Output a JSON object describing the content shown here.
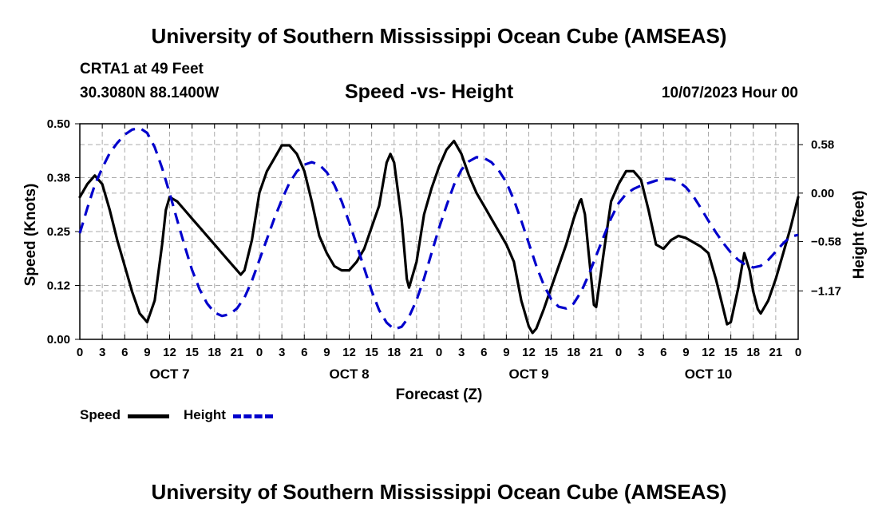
{
  "header": {
    "title": "University of Southern Mississippi Ocean Cube (AMSEAS)",
    "station": "CRTA1 at 49 Feet",
    "coords": "30.3080N  88.1400W",
    "date": "10/07/2023 Hour 00"
  },
  "footer": {
    "title": "University of Southern Mississippi Ocean Cube (AMSEAS)"
  },
  "legend": {
    "speed_label": "Speed",
    "height_label": "Height"
  },
  "colors": {
    "speed": "#000000",
    "height": "#0000cc",
    "grid": "#aaaaaa"
  },
  "chart_data": {
    "type": "line",
    "title": "Speed -vs- Height",
    "xlabel": "Forecast (Z)",
    "ylabel": "Speed (Knots)",
    "y2label": "Height (feet)",
    "x_range_hours": [
      0,
      96
    ],
    "ylim": [
      0,
      0.5
    ],
    "y2lim": [
      -1.75,
      0.83
    ],
    "y_ticks": [
      "0.00",
      "0.12",
      "0.25",
      "0.38",
      "0.50"
    ],
    "y_tick_values": [
      0,
      0.125,
      0.25,
      0.375,
      0.5
    ],
    "y2_ticks": [
      "0.58",
      "0.00",
      "−0.58",
      "−1.17"
    ],
    "y2_tick_values": [
      0.58,
      0,
      -0.58,
      -1.17
    ],
    "x_tick_labels": [
      "0",
      "3",
      "6",
      "9",
      "12",
      "15",
      "18",
      "21",
      "0",
      "3",
      "6",
      "9",
      "12",
      "15",
      "18",
      "21",
      "0",
      "3",
      "6",
      "9",
      "12",
      "15",
      "18",
      "21",
      "0",
      "3",
      "6",
      "9",
      "12",
      "15",
      "18",
      "21",
      "0"
    ],
    "day_labels": [
      {
        "label": "OCT 7",
        "hour": 12
      },
      {
        "label": "OCT 8",
        "hour": 36
      },
      {
        "label": "OCT 9",
        "hour": 60
      },
      {
        "label": "OCT 10",
        "hour": 84
      }
    ],
    "series": [
      {
        "name": "Speed",
        "axis": "left",
        "style": "solid",
        "points": [
          [
            0,
            0.33
          ],
          [
            1,
            0.36
          ],
          [
            2,
            0.38
          ],
          [
            3,
            0.36
          ],
          [
            4,
            0.3
          ],
          [
            5,
            0.23
          ],
          [
            6,
            0.17
          ],
          [
            7,
            0.11
          ],
          [
            8,
            0.06
          ],
          [
            9,
            0.04
          ],
          [
            10,
            0.09
          ],
          [
            11,
            0.22
          ],
          [
            11.5,
            0.3
          ],
          [
            12,
            0.33
          ],
          [
            13,
            0.32
          ],
          [
            14,
            0.3
          ],
          [
            15,
            0.28
          ],
          [
            16,
            0.26
          ],
          [
            17,
            0.24
          ],
          [
            18,
            0.22
          ],
          [
            19,
            0.2
          ],
          [
            20,
            0.18
          ],
          [
            21,
            0.16
          ],
          [
            21.5,
            0.15
          ],
          [
            22,
            0.16
          ],
          [
            23,
            0.23
          ],
          [
            24,
            0.34
          ],
          [
            25,
            0.39
          ],
          [
            26,
            0.42
          ],
          [
            27,
            0.45
          ],
          [
            28,
            0.45
          ],
          [
            29,
            0.43
          ],
          [
            30,
            0.39
          ],
          [
            31,
            0.32
          ],
          [
            32,
            0.24
          ],
          [
            33,
            0.2
          ],
          [
            34,
            0.17
          ],
          [
            35,
            0.16
          ],
          [
            36,
            0.16
          ],
          [
            37,
            0.18
          ],
          [
            38,
            0.21
          ],
          [
            39,
            0.26
          ],
          [
            40,
            0.31
          ],
          [
            40.5,
            0.36
          ],
          [
            41,
            0.41
          ],
          [
            41.5,
            0.43
          ],
          [
            42,
            0.41
          ],
          [
            43,
            0.28
          ],
          [
            43.7,
            0.14
          ],
          [
            44,
            0.12
          ],
          [
            45,
            0.18
          ],
          [
            46,
            0.29
          ],
          [
            47,
            0.35
          ],
          [
            48,
            0.4
          ],
          [
            49,
            0.44
          ],
          [
            50,
            0.46
          ],
          [
            51,
            0.43
          ],
          [
            52,
            0.38
          ],
          [
            53,
            0.34
          ],
          [
            54,
            0.31
          ],
          [
            55,
            0.28
          ],
          [
            56,
            0.25
          ],
          [
            57,
            0.22
          ],
          [
            58,
            0.18
          ],
          [
            59,
            0.09
          ],
          [
            60,
            0.03
          ],
          [
            60.5,
            0.015
          ],
          [
            61,
            0.025
          ],
          [
            62,
            0.07
          ],
          [
            63,
            0.12
          ],
          [
            64,
            0.17
          ],
          [
            65,
            0.22
          ],
          [
            66,
            0.28
          ],
          [
            66.8,
            0.32
          ],
          [
            67,
            0.325
          ],
          [
            67.5,
            0.29
          ],
          [
            68,
            0.2
          ],
          [
            68.7,
            0.08
          ],
          [
            69,
            0.075
          ],
          [
            70,
            0.2
          ],
          [
            71,
            0.32
          ],
          [
            72,
            0.36
          ],
          [
            73,
            0.39
          ],
          [
            74,
            0.39
          ],
          [
            75,
            0.37
          ],
          [
            76,
            0.3
          ],
          [
            77,
            0.22
          ],
          [
            78,
            0.21
          ],
          [
            79,
            0.23
          ],
          [
            80,
            0.24
          ],
          [
            81,
            0.235
          ],
          [
            82,
            0.225
          ],
          [
            83,
            0.215
          ],
          [
            84,
            0.2
          ],
          [
            85,
            0.14
          ],
          [
            86,
            0.07
          ],
          [
            86.5,
            0.035
          ],
          [
            87,
            0.04
          ],
          [
            88,
            0.12
          ],
          [
            88.8,
            0.2
          ],
          [
            89.5,
            0.16
          ],
          [
            90,
            0.11
          ],
          [
            90.6,
            0.07
          ],
          [
            91,
            0.06
          ],
          [
            92,
            0.09
          ],
          [
            93,
            0.14
          ],
          [
            94,
            0.2
          ],
          [
            95,
            0.26
          ],
          [
            96,
            0.33
          ]
        ]
      },
      {
        "name": "Height",
        "axis": "right",
        "style": "dashed",
        "points": [
          [
            0,
            -0.48
          ],
          [
            1,
            -0.18
          ],
          [
            2,
            0.1
          ],
          [
            3,
            0.3
          ],
          [
            4,
            0.48
          ],
          [
            5,
            0.6
          ],
          [
            6,
            0.7
          ],
          [
            7,
            0.76
          ],
          [
            8,
            0.78
          ],
          [
            9,
            0.72
          ],
          [
            10,
            0.55
          ],
          [
            11,
            0.3
          ],
          [
            12,
            0.0
          ],
          [
            13,
            -0.32
          ],
          [
            14,
            -0.63
          ],
          [
            15,
            -0.92
          ],
          [
            16,
            -1.15
          ],
          [
            17,
            -1.32
          ],
          [
            18,
            -1.43
          ],
          [
            19,
            -1.47
          ],
          [
            20,
            -1.45
          ],
          [
            21,
            -1.38
          ],
          [
            22,
            -1.25
          ],
          [
            23,
            -1.05
          ],
          [
            24,
            -0.8
          ],
          [
            25,
            -0.55
          ],
          [
            26,
            -0.3
          ],
          [
            27,
            -0.08
          ],
          [
            28,
            0.12
          ],
          [
            29,
            0.26
          ],
          [
            30,
            0.34
          ],
          [
            31,
            0.37
          ],
          [
            32,
            0.34
          ],
          [
            33,
            0.25
          ],
          [
            34,
            0.1
          ],
          [
            35,
            -0.1
          ],
          [
            36,
            -0.35
          ],
          [
            37,
            -0.62
          ],
          [
            38,
            -0.9
          ],
          [
            39,
            -1.17
          ],
          [
            40,
            -1.4
          ],
          [
            41,
            -1.55
          ],
          [
            42,
            -1.63
          ],
          [
            43,
            -1.6
          ],
          [
            44,
            -1.48
          ],
          [
            45,
            -1.28
          ],
          [
            46,
            -1.02
          ],
          [
            47,
            -0.72
          ],
          [
            48,
            -0.42
          ],
          [
            49,
            -0.15
          ],
          [
            50,
            0.1
          ],
          [
            51,
            0.28
          ],
          [
            52,
            0.38
          ],
          [
            53,
            0.43
          ],
          [
            54,
            0.42
          ],
          [
            55,
            0.37
          ],
          [
            56,
            0.27
          ],
          [
            57,
            0.13
          ],
          [
            58,
            -0.08
          ],
          [
            59,
            -0.33
          ],
          [
            60,
            -0.6
          ],
          [
            61,
            -0.87
          ],
          [
            62,
            -1.1
          ],
          [
            63,
            -1.27
          ],
          [
            64,
            -1.36
          ],
          [
            65,
            -1.38
          ],
          [
            66,
            -1.32
          ],
          [
            67,
            -1.18
          ],
          [
            68,
            -0.98
          ],
          [
            69,
            -0.75
          ],
          [
            70,
            -0.52
          ],
          [
            71,
            -0.3
          ],
          [
            72,
            -0.12
          ],
          [
            73,
            -0.01
          ],
          [
            74,
            0.05
          ],
          [
            75,
            0.09
          ],
          [
            76,
            0.12
          ],
          [
            77,
            0.15
          ],
          [
            78,
            0.17
          ],
          [
            79,
            0.17
          ],
          [
            80,
            0.14
          ],
          [
            81,
            0.07
          ],
          [
            82,
            -0.04
          ],
          [
            83,
            -0.18
          ],
          [
            84,
            -0.33
          ],
          [
            85,
            -0.47
          ],
          [
            86,
            -0.6
          ],
          [
            87,
            -0.71
          ],
          [
            88,
            -0.8
          ],
          [
            89,
            -0.86
          ],
          [
            90,
            -0.89
          ],
          [
            91,
            -0.87
          ],
          [
            92,
            -0.8
          ],
          [
            93,
            -0.7
          ],
          [
            94,
            -0.6
          ],
          [
            95,
            -0.52
          ],
          [
            96,
            -0.5
          ]
        ]
      }
    ]
  }
}
